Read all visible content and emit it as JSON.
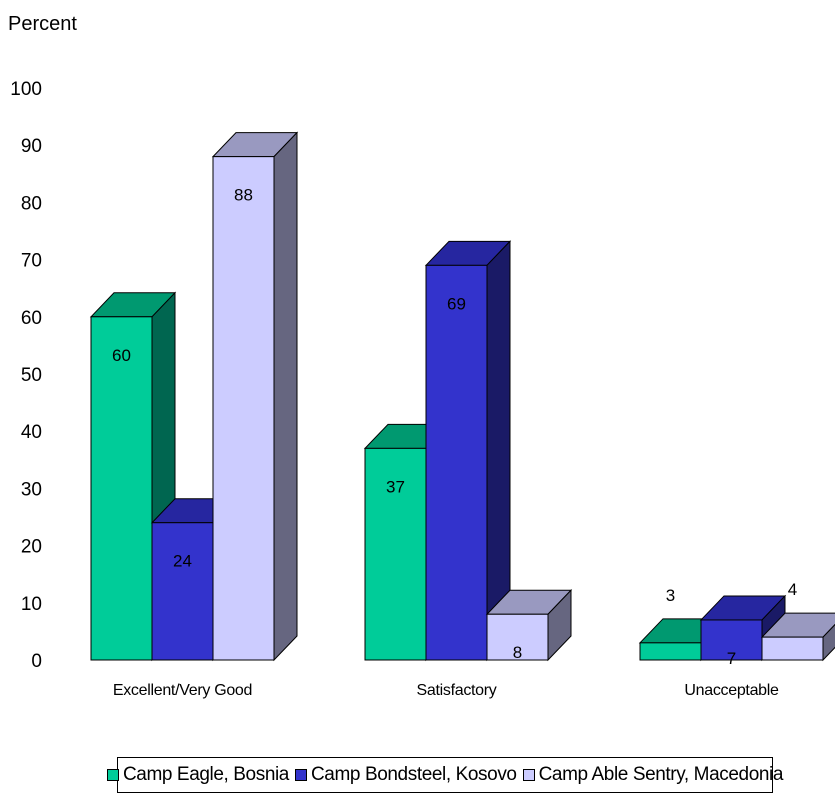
{
  "chart_data": {
    "type": "bar",
    "ylabel": "Percent",
    "ylim": [
      0,
      100
    ],
    "yticks": [
      0,
      10,
      20,
      30,
      40,
      50,
      60,
      70,
      80,
      90,
      100
    ],
    "categories": [
      "Excellent/Very Good",
      "Satisfactory",
      "Unacceptable"
    ],
    "series": [
      {
        "name": "Camp Eagle, Bosnia",
        "values": [
          60,
          37,
          3
        ],
        "color": "#00cc99",
        "side_color": "#006650",
        "top_color": "#009970"
      },
      {
        "name": "Camp Bondsteel, Kosovo",
        "values": [
          24,
          69,
          7
        ],
        "color": "#3333cc",
        "side_color": "#1a1a66",
        "top_color": "#2626a0"
      },
      {
        "name": "Camp Able Sentry, Macedonia",
        "values": [
          88,
          8,
          4
        ],
        "color": "#ccccff",
        "side_color": "#666680",
        "top_color": "#9999c0"
      }
    ],
    "grid": false,
    "three_d": true,
    "legend_position": "bottom"
  }
}
